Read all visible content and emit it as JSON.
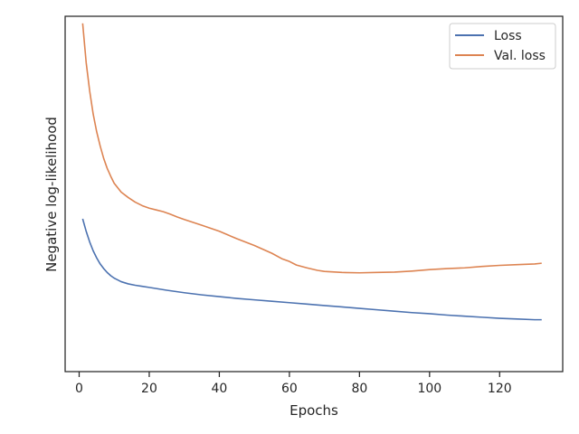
{
  "chart_data": {
    "type": "line",
    "title": "",
    "xlabel": "Epochs",
    "ylabel": "Negative log-likelihood",
    "xlim": [
      -4,
      138
    ],
    "ylim": [
      0,
      1
    ],
    "xticks": [
      0,
      20,
      40,
      60,
      80,
      100,
      120
    ],
    "y_tick_labels_shown": false,
    "grid": false,
    "legend_position": "top-right",
    "series": [
      {
        "name": "Loss",
        "color": "#4c72b0",
        "x": [
          1,
          2,
          3,
          4,
          5,
          6,
          7,
          8,
          9,
          10,
          12,
          14,
          16,
          18,
          20,
          25,
          30,
          35,
          40,
          45,
          50,
          55,
          60,
          65,
          70,
          75,
          80,
          85,
          90,
          95,
          100,
          105,
          110,
          115,
          120,
          125,
          130,
          132
        ],
        "y": [
          0.43,
          0.395,
          0.365,
          0.34,
          0.32,
          0.303,
          0.29,
          0.279,
          0.27,
          0.263,
          0.253,
          0.247,
          0.243,
          0.24,
          0.237,
          0.229,
          0.222,
          0.216,
          0.211,
          0.206,
          0.202,
          0.198,
          0.194,
          0.19,
          0.186,
          0.182,
          0.178,
          0.174,
          0.17,
          0.166,
          0.163,
          0.159,
          0.156,
          0.153,
          0.15,
          0.148,
          0.146,
          0.146
        ]
      },
      {
        "name": "Val. loss",
        "color": "#dd8452",
        "x": [
          1,
          2,
          3,
          4,
          5,
          6,
          7,
          8,
          9,
          10,
          12,
          14,
          16,
          18,
          20,
          22,
          24,
          26,
          28,
          30,
          35,
          40,
          45,
          50,
          55,
          58,
          60,
          62,
          65,
          68,
          70,
          75,
          80,
          85,
          90,
          95,
          100,
          105,
          110,
          115,
          120,
          125,
          130,
          132
        ],
        "y": [
          0.98,
          0.87,
          0.79,
          0.725,
          0.675,
          0.635,
          0.6,
          0.572,
          0.55,
          0.53,
          0.505,
          0.49,
          0.477,
          0.467,
          0.46,
          0.455,
          0.45,
          0.443,
          0.435,
          0.428,
          0.412,
          0.395,
          0.374,
          0.355,
          0.333,
          0.317,
          0.31,
          0.3,
          0.292,
          0.285,
          0.282,
          0.279,
          0.278,
          0.279,
          0.28,
          0.283,
          0.287,
          0.29,
          0.292,
          0.296,
          0.299,
          0.301,
          0.303,
          0.305
        ]
      }
    ]
  }
}
